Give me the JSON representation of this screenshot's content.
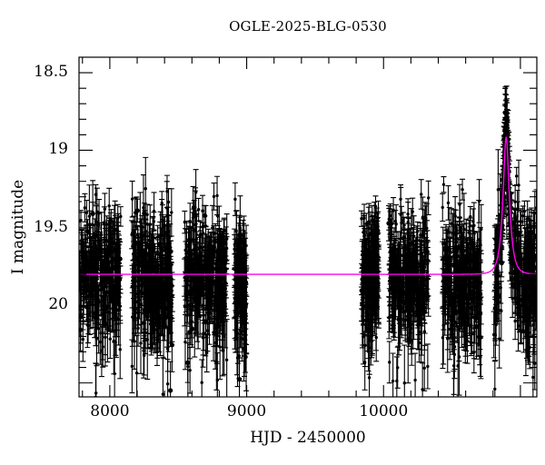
{
  "chart_data": {
    "type": "scatter",
    "title": "OGLE-2025-BLG-0530",
    "xlabel": "HJD - 2450000",
    "ylabel": "I magnitude",
    "x_range": [
      7775,
      11120
    ],
    "y_range_mag": [
      18.4,
      20.59
    ],
    "y_axis_inverted_magnitudes": true,
    "grid": false,
    "legend": "none",
    "frame": "full-box-inward-ticks",
    "x_ticks": [
      {
        "value": 8000,
        "label": "8000"
      },
      {
        "value": 9000,
        "label": "9000"
      },
      {
        "value": 10000,
        "label": "10000"
      }
    ],
    "x_tick_minor_step": 200,
    "y_ticks": [
      {
        "value": 18.5,
        "label": "18.5"
      },
      {
        "value": 19.0,
        "label": "19"
      },
      {
        "value": 19.5,
        "label": "19.5"
      },
      {
        "value": 20.0,
        "label": "20"
      }
    ],
    "y_tick_minor_step": 0.1,
    "point_color": "#000000",
    "model_color": "#ff00f0",
    "model": {
      "type": "paczynski_point_lens_microlensing",
      "baseline_I_mag": 19.8,
      "t0_peak_hjd_minus_2450000": 10896,
      "tE_days": 40,
      "u0": 0.48,
      "peak_I_mag": 18.92,
      "peak_extra_points": 70
    },
    "scatter_sigma_mag": 0.2,
    "typical_error_bar_mag": 0.13,
    "seasons": [
      {
        "t_start": 7775,
        "t_end": 8080,
        "n_points": 260
      },
      {
        "t_start": 8160,
        "t_end": 8460,
        "n_points": 300
      },
      {
        "t_start": 8545,
        "t_end": 8855,
        "n_points": 300
      },
      {
        "t_start": 8910,
        "t_end": 9000,
        "n_points": 120
      },
      {
        "t_start": 9838,
        "t_end": 9965,
        "n_points": 170
      },
      {
        "t_start": 10037,
        "t_end": 10330,
        "n_points": 280
      },
      {
        "t_start": 10430,
        "t_end": 10715,
        "n_points": 280
      },
      {
        "t_start": 10805,
        "t_end": 11119,
        "n_points": 330,
        "contains_event": true
      }
    ]
  }
}
